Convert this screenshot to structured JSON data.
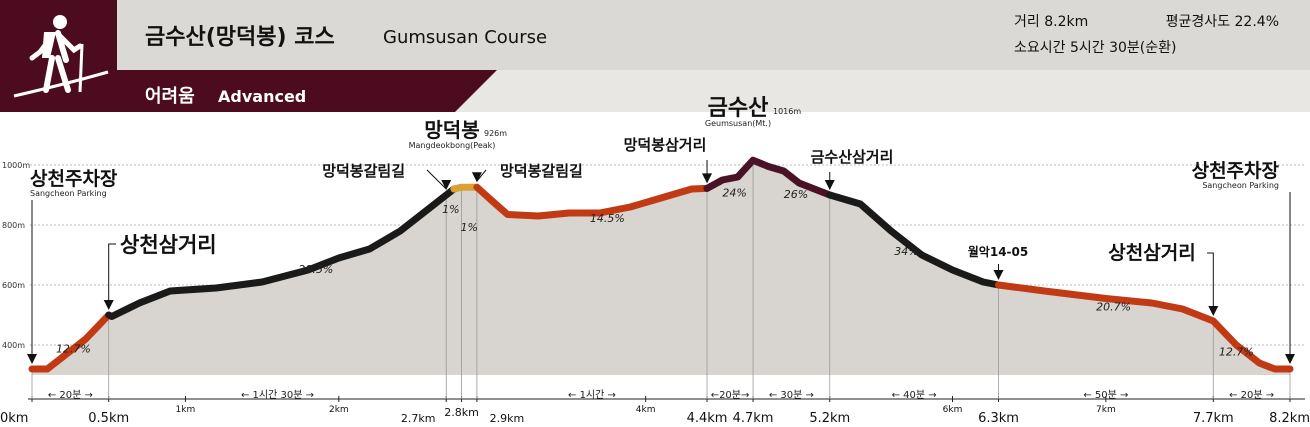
{
  "header": {
    "title_ko": "금수산(망덕봉) 코스",
    "title_en": "Gumsusan Course",
    "level_ko": "어려움",
    "level_en": "Advanced",
    "distance": "거리 8.2km",
    "avg_slope": "평균경사도 22.4%",
    "duration": "소요시간 5시간 30분(순환)",
    "icon": "hiker-icon"
  },
  "colors": {
    "banner_dark": "#4d0b1f",
    "header_bg": "#dbd9d5",
    "profile_fill": "#d8d4cf",
    "trail_red": "#c23a14",
    "trail_black": "#1a1a1a",
    "trail_maroon": "#4a1226",
    "trail_orange": "#d9a032"
  },
  "chart_data": {
    "type": "area",
    "xlabel": "",
    "ylabel": "",
    "xlim": [
      0,
      8.2
    ],
    "ylim": [
      300,
      1016
    ],
    "grid": true,
    "y_ticks": [
      "400m",
      "600m",
      "800m",
      "1000m"
    ],
    "y_tick_values": [
      400,
      600,
      800,
      1000
    ],
    "x_ticks": [
      {
        "x": 0,
        "label": "0km",
        "major": true
      },
      {
        "x": 0.5,
        "label": "0.5km",
        "major": true
      },
      {
        "x": 1,
        "label": "1km",
        "major": false
      },
      {
        "x": 2,
        "label": "2km",
        "major": false
      },
      {
        "x": 2.7,
        "label": "2.7km",
        "major": false
      },
      {
        "x": 2.8,
        "label": "2.8km",
        "major": false
      },
      {
        "x": 2.9,
        "label": "2.9km",
        "major": false
      },
      {
        "x": 4,
        "label": "4km",
        "major": false
      },
      {
        "x": 4.4,
        "label": "4.4km",
        "major": true
      },
      {
        "x": 4.7,
        "label": "4.7km",
        "major": true
      },
      {
        "x": 5.2,
        "label": "5.2km",
        "major": true
      },
      {
        "x": 6,
        "label": "6km",
        "major": false
      },
      {
        "x": 6.3,
        "label": "6.3km",
        "major": true
      },
      {
        "x": 7,
        "label": "7km",
        "major": false
      },
      {
        "x": 7.7,
        "label": "7.7km",
        "major": true
      },
      {
        "x": 8.2,
        "label": "8.2km",
        "major": true
      }
    ],
    "profile": [
      [
        0,
        320
      ],
      [
        0.1,
        320
      ],
      [
        0.2,
        360
      ],
      [
        0.35,
        420
      ],
      [
        0.5,
        500
      ],
      [
        0.52,
        495
      ],
      [
        0.7,
        540
      ],
      [
        0.9,
        580
      ],
      [
        1.2,
        590
      ],
      [
        1.5,
        610
      ],
      [
        1.8,
        650
      ],
      [
        2.0,
        690
      ],
      [
        2.2,
        720
      ],
      [
        2.4,
        780
      ],
      [
        2.6,
        860
      ],
      [
        2.75,
        920
      ],
      [
        2.8,
        926
      ],
      [
        2.9,
        926
      ],
      [
        3.0,
        880
      ],
      [
        3.1,
        835
      ],
      [
        3.3,
        830
      ],
      [
        3.5,
        840
      ],
      [
        3.7,
        840
      ],
      [
        3.9,
        860
      ],
      [
        4.1,
        890
      ],
      [
        4.3,
        920
      ],
      [
        4.4,
        922
      ],
      [
        4.5,
        950
      ],
      [
        4.6,
        960
      ],
      [
        4.7,
        1016
      ],
      [
        4.8,
        995
      ],
      [
        4.9,
        980
      ],
      [
        5.0,
        940
      ],
      [
        5.1,
        920
      ],
      [
        5.2,
        900
      ],
      [
        5.4,
        870
      ],
      [
        5.6,
        780
      ],
      [
        5.8,
        700
      ],
      [
        6.0,
        650
      ],
      [
        6.2,
        610
      ],
      [
        6.3,
        600
      ],
      [
        6.6,
        580
      ],
      [
        7.0,
        555
      ],
      [
        7.3,
        540
      ],
      [
        7.5,
        520
      ],
      [
        7.7,
        480
      ],
      [
        7.85,
        400
      ],
      [
        8.0,
        340
      ],
      [
        8.1,
        320
      ],
      [
        8.2,
        320
      ]
    ],
    "segments": [
      {
        "from": 0,
        "to": 0.5,
        "color": "#c23a14"
      },
      {
        "from": 0.5,
        "to": 2.75,
        "color": "#1a1a1a"
      },
      {
        "from": 2.75,
        "to": 2.9,
        "color": "#d9a032"
      },
      {
        "from": 2.9,
        "to": 4.4,
        "color": "#c23a14"
      },
      {
        "from": 4.4,
        "to": 5.2,
        "color": "#4a1226"
      },
      {
        "from": 5.2,
        "to": 6.3,
        "color": "#1a1a1a"
      },
      {
        "from": 6.3,
        "to": 8.2,
        "color": "#c23a14"
      }
    ],
    "slopes": [
      {
        "x": 0.27,
        "y": 375,
        "label": "12.7%"
      },
      {
        "x": 1.85,
        "y": 640,
        "label": "28.5%"
      },
      {
        "x": 2.73,
        "y": 840,
        "label": "1%"
      },
      {
        "x": 2.85,
        "y": 780,
        "label": "1%"
      },
      {
        "x": 3.75,
        "y": 810,
        "label": "14.5%"
      },
      {
        "x": 4.58,
        "y": 895,
        "label": "24%"
      },
      {
        "x": 4.98,
        "y": 890,
        "label": "26%"
      },
      {
        "x": 5.7,
        "y": 700,
        "label": "34%"
      },
      {
        "x": 7.05,
        "y": 515,
        "label": "20.7%"
      },
      {
        "x": 7.85,
        "y": 365,
        "label": "12.7%"
      }
    ],
    "durations": [
      {
        "from": 0,
        "to": 0.5,
        "label": "← 20분 →"
      },
      {
        "from": 0.5,
        "to": 2.7,
        "label": "← 1시간 30분 →"
      },
      {
        "from": 2.9,
        "to": 4.4,
        "label": "← 1시간 →"
      },
      {
        "from": 4.4,
        "to": 4.7,
        "label": "←20분→"
      },
      {
        "from": 4.7,
        "to": 5.2,
        "label": "← 30분 →"
      },
      {
        "from": 5.2,
        "to": 6.3,
        "label": "← 40분 →"
      },
      {
        "from": 6.3,
        "to": 7.7,
        "label": "← 50분 →"
      },
      {
        "from": 7.7,
        "to": 8.2,
        "label": "← 20분 →"
      }
    ],
    "landmarks": [
      {
        "name": "상천주차장",
        "sub": "Sangcheon Parking",
        "x": 0
      },
      {
        "name": "상천삼거리",
        "sub": "",
        "x": 0.5
      },
      {
        "name": "망덕봉갈림길",
        "sub": "",
        "x": 2.7
      },
      {
        "name": "망덕봉",
        "sub": "Mangdeokbong(Peak)",
        "sup": "926m",
        "x": 2.8
      },
      {
        "name": "망덕봉갈림길",
        "sub": "",
        "x": 2.9
      },
      {
        "name": "망덕봉삼거리",
        "sub": "",
        "x": 4.4
      },
      {
        "name": "금수산",
        "sub": "Geumsusan(Mt.)",
        "sup": "1016m",
        "x": 4.7
      },
      {
        "name": "금수산삼거리",
        "sub": "",
        "x": 5.2
      },
      {
        "name": "월악14-05",
        "sub": "",
        "x": 6.3
      },
      {
        "name": "상천삼거리",
        "sub": "",
        "x": 7.7
      },
      {
        "name": "상천주차장",
        "sub": "Sangcheon Parking",
        "x": 8.2
      }
    ]
  }
}
